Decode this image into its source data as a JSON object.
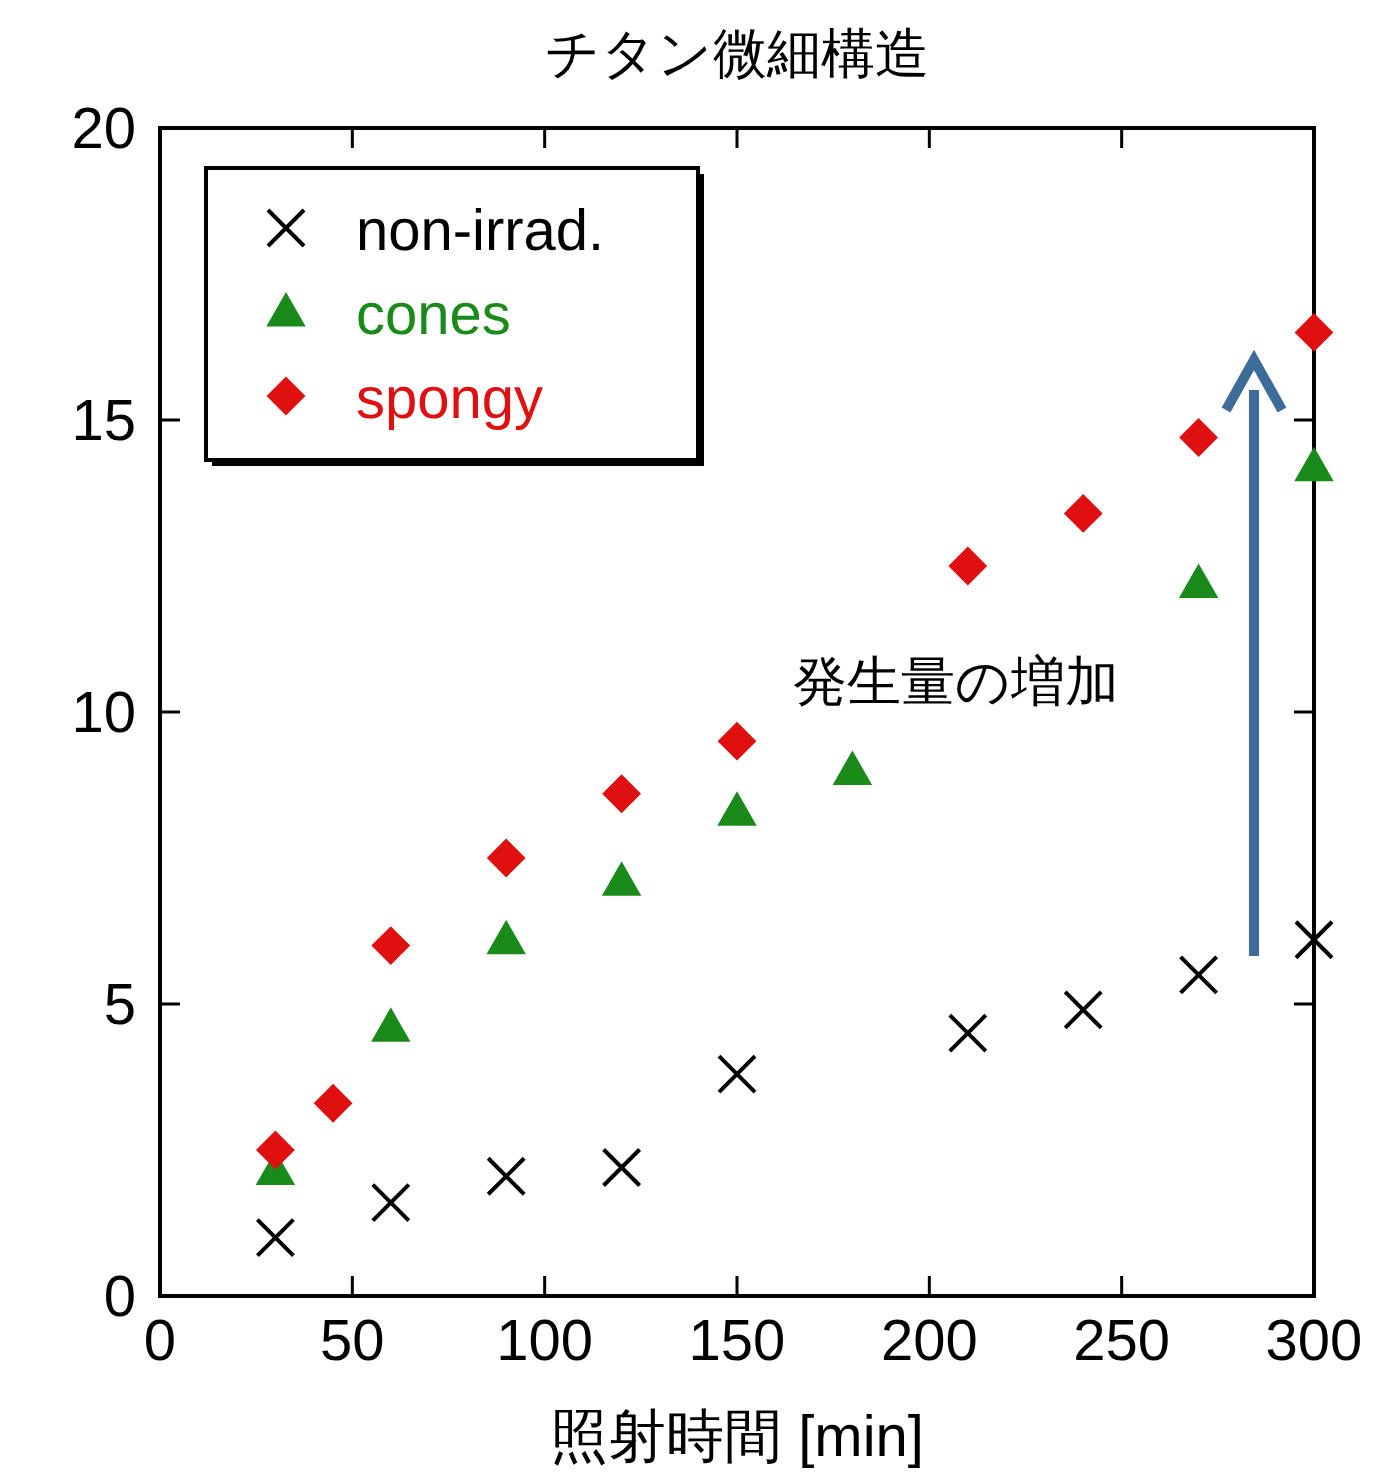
{
  "chart_data": {
    "type": "scatter",
    "title": "チタン微細構造",
    "xlabel": "照射時間 [min]",
    "xlim": [
      0,
      300
    ],
    "xticks": [
      0,
      50,
      100,
      150,
      200,
      250,
      300
    ],
    "ylim": [
      0,
      20
    ],
    "yticks": [
      0,
      5,
      10,
      15,
      20
    ],
    "grid": false,
    "legend": "top left",
    "annotations": [
      "発生量の増加"
    ],
    "series": [
      {
        "name": "non-irrad.",
        "color": "#000000",
        "marker": "cross",
        "x": [
          30,
          60,
          90,
          120,
          150,
          210,
          240,
          270,
          300
        ],
        "values": [
          1.0,
          1.6,
          2.05,
          2.2,
          3.8,
          4.5,
          4.9,
          5.5,
          6.1
        ]
      },
      {
        "name": "cones",
        "color": "#1a8a1a",
        "marker": "triangle",
        "x": [
          30,
          60,
          90,
          120,
          150,
          180,
          270,
          300
        ],
        "values": [
          2.15,
          4.6,
          6.1,
          7.1,
          8.3,
          9.0,
          12.2,
          14.2
        ]
      },
      {
        "name": "spongy",
        "color": "#e01010",
        "marker": "diamond",
        "x": [
          30,
          45,
          60,
          90,
          120,
          150,
          210,
          240,
          270,
          300
        ],
        "values": [
          2.5,
          3.3,
          6.0,
          7.5,
          8.6,
          9.5,
          12.5,
          13.4,
          14.7,
          16.5
        ]
      }
    ]
  }
}
